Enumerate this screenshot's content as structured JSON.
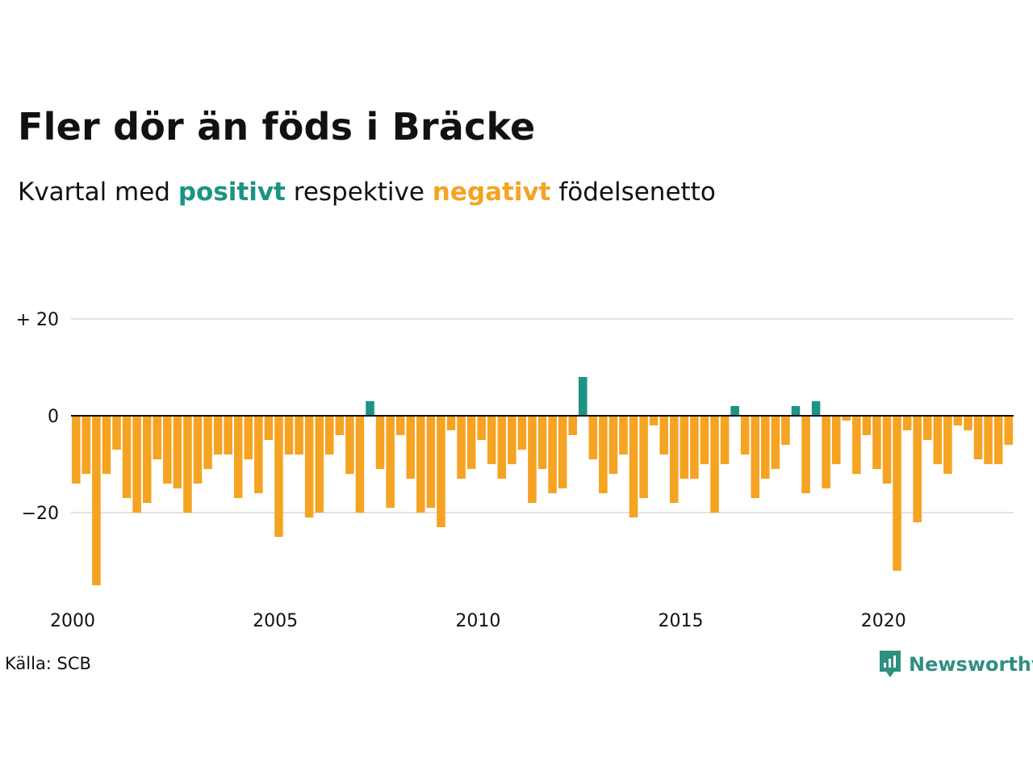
{
  "header": {
    "title": "Fler dör än föds i Bräcke",
    "subtitle_prefix": "Kvartal med",
    "subtitle_positive": "positivt",
    "subtitle_middle": "respektive",
    "subtitle_negative": "negativt",
    "subtitle_suffix": "födelsenetto"
  },
  "footer": {
    "source": "Källa: SCB",
    "brand": "Newsworthy",
    "brand_icon": "newsworthy-logo-icon"
  },
  "colors": {
    "positive": "#1a9485",
    "negative": "#f5a322",
    "grid": "#e3e3e3",
    "zero_line": "#111111",
    "brand": "#2f8f80"
  },
  "chart_data": {
    "type": "bar",
    "title": "Fler dör än föds i Bräcke",
    "subtitle": "Kvartal med positivt respektive negativt födelsenetto",
    "xlabel": "",
    "ylabel": "",
    "x_start": 2000.0,
    "x_step": 0.25,
    "values": [
      -14,
      -12,
      -35,
      -12,
      -7,
      -17,
      -20,
      -18,
      -9,
      -14,
      -15,
      -20,
      -14,
      -11,
      -8,
      -8,
      -17,
      -9,
      -16,
      -5,
      -25,
      -8,
      -8,
      -21,
      -20,
      -8,
      -4,
      -12,
      -20,
      3,
      -11,
      -19,
      -4,
      -13,
      -20,
      -19,
      -23,
      -3,
      -13,
      -11,
      -5,
      -10,
      -13,
      -10,
      -7,
      -18,
      -11,
      -16,
      -15,
      -4,
      8,
      -9,
      -16,
      -12,
      -8,
      -21,
      -17,
      -2,
      -8,
      -18,
      -13,
      -13,
      -10,
      -20,
      -10,
      2,
      -8,
      -17,
      -13,
      -11,
      -6,
      2,
      -16,
      3,
      -15,
      -10,
      -1,
      -12,
      -4,
      -11,
      -14,
      -32,
      -3,
      -22,
      -5,
      -10,
      -12,
      -2,
      -3,
      -9,
      -10,
      -10,
      -6
    ],
    "y_ticks": [
      {
        "value": 20,
        "label": "+ 20"
      },
      {
        "value": 0,
        "label": "0"
      },
      {
        "value": -20,
        "label": "−20"
      }
    ],
    "x_ticks": [
      {
        "value": 2000,
        "label": "2000"
      },
      {
        "value": 2005,
        "label": "2005"
      },
      {
        "value": 2010,
        "label": "2010"
      },
      {
        "value": 2015,
        "label": "2015"
      },
      {
        "value": 2020,
        "label": "2020"
      }
    ],
    "ylim": [
      -37,
      25
    ],
    "xlim": [
      2000,
      2023.25
    ],
    "grid": true,
    "legend": "none"
  }
}
